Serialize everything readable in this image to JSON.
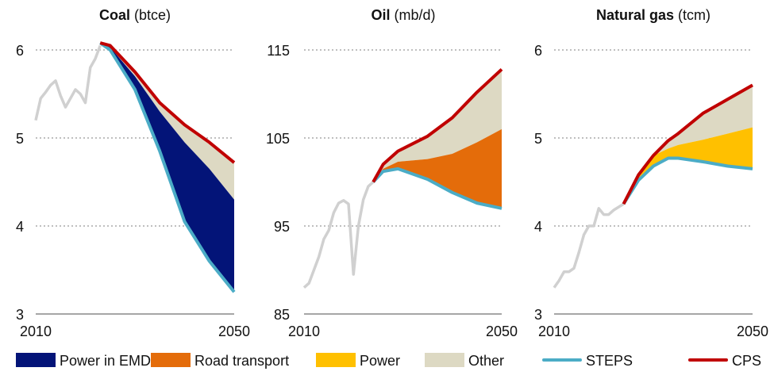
{
  "colors": {
    "power_emde": "#031478",
    "road": "#E46C0A",
    "power": "#FFC000",
    "other": "#DDD9C3",
    "steps": "#4BACC6",
    "cps": "#C00000",
    "hist": "#D0D0D0"
  },
  "legend": [
    {
      "label": "Power in EMDE",
      "type": "area",
      "color": "#031478"
    },
    {
      "label": "Road transport",
      "type": "area",
      "color": "#E46C0A"
    },
    {
      "label": "Power",
      "type": "area",
      "color": "#FFC000"
    },
    {
      "label": "Other",
      "type": "area",
      "color": "#DDD9C3"
    },
    {
      "label": "STEPS",
      "type": "line",
      "color": "#4BACC6"
    },
    {
      "label": "CPS",
      "type": "line",
      "color": "#C00000"
    }
  ],
  "chart_data": [
    {
      "type": "area",
      "title_bold": "Coal",
      "title_unit": "(btce)",
      "ylim": [
        3,
        6
      ],
      "yticks": [
        "3",
        "4",
        "5",
        "6"
      ],
      "yvals": [
        3,
        4,
        5,
        6
      ],
      "xlim": [
        2010,
        2050
      ],
      "xticks": [
        "2010",
        "2050"
      ],
      "historical": {
        "x": [
          2010,
          2011,
          2012,
          2013,
          2014,
          2015,
          2016,
          2017,
          2018,
          2019,
          2020,
          2021,
          2022,
          2023
        ],
        "y": [
          5.2,
          5.45,
          5.52,
          5.6,
          5.65,
          5.48,
          5.35,
          5.45,
          5.55,
          5.5,
          5.4,
          5.8,
          5.9,
          6.05
        ]
      },
      "proj_x": [
        2023,
        2025,
        2030,
        2035,
        2040,
        2045,
        2050
      ],
      "steps": [
        6.08,
        6.0,
        5.55,
        4.85,
        4.05,
        3.6,
        3.25
      ],
      "middle": [
        6.08,
        6.03,
        5.7,
        5.3,
        4.95,
        4.65,
        4.3
      ],
      "cps": [
        6.08,
        6.05,
        5.75,
        5.4,
        5.15,
        4.95,
        4.72
      ],
      "band": "Power in EMDE",
      "band_color": "#031478"
    },
    {
      "type": "area",
      "title_bold": "Oil",
      "title_unit": "(mb/d)",
      "ylim": [
        85,
        115
      ],
      "yticks": [
        "85",
        "95",
        "105",
        "115"
      ],
      "yvals": [
        85,
        95,
        105,
        115
      ],
      "xlim": [
        2010,
        2050
      ],
      "xticks": [
        "2010",
        "2050"
      ],
      "historical": {
        "x": [
          2010,
          2011,
          2012,
          2013,
          2014,
          2015,
          2016,
          2017,
          2018,
          2019,
          2020,
          2021,
          2022,
          2023,
          2024
        ],
        "y": [
          88,
          88.5,
          90,
          91.5,
          93.5,
          94.5,
          96.5,
          97.6,
          97.9,
          97.5,
          89.5,
          95,
          98,
          99.5,
          100
        ]
      },
      "proj_x": [
        2024,
        2026,
        2029,
        2035,
        2040,
        2045,
        2050
      ],
      "steps": [
        100,
        101.2,
        101.5,
        100.3,
        98.8,
        97.6,
        97.0
      ],
      "middle": [
        100,
        101.5,
        102.3,
        102.6,
        103.2,
        104.5,
        106
      ],
      "cps": [
        100,
        102,
        103.5,
        105.2,
        107.3,
        110.2,
        112.8
      ],
      "band": "Road transport",
      "band_color": "#E46C0A"
    },
    {
      "type": "area",
      "title_bold": "Natural gas",
      "title_unit": "(tcm)",
      "ylim": [
        3,
        6
      ],
      "yticks": [
        "3",
        "4",
        "5",
        "6"
      ],
      "yvals": [
        3,
        4,
        5,
        6
      ],
      "xlim": [
        2010,
        2050
      ],
      "xticks": [
        "2010",
        "2050"
      ],
      "historical": {
        "x": [
          2010,
          2011,
          2012,
          2013,
          2014,
          2015,
          2016,
          2017,
          2018,
          2019,
          2020,
          2021,
          2022,
          2024
        ],
        "y": [
          3.3,
          3.38,
          3.48,
          3.48,
          3.52,
          3.7,
          3.9,
          4.0,
          4.0,
          4.2,
          4.13,
          4.13,
          4.18,
          4.25
        ]
      },
      "proj_x": [
        2024,
        2027,
        2030,
        2033,
        2035,
        2040,
        2045,
        2050
      ],
      "steps": [
        4.25,
        4.52,
        4.68,
        4.77,
        4.77,
        4.73,
        4.68,
        4.65
      ],
      "middle": [
        4.25,
        4.55,
        4.8,
        4.88,
        4.92,
        4.98,
        5.05,
        5.12
      ],
      "cps": [
        4.25,
        4.58,
        4.8,
        4.97,
        5.05,
        5.28,
        5.44,
        5.6
      ],
      "band": "Power",
      "band_color": "#FFC000"
    }
  ]
}
